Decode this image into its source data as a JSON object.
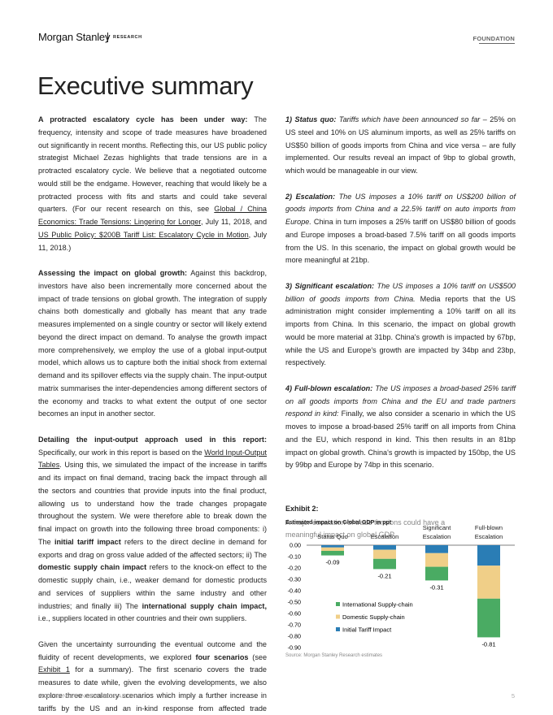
{
  "header": {
    "brand": "Morgan Stanley",
    "section": "RESEARCH",
    "tag": "FOUNDATION"
  },
  "title": "Executive summary",
  "columns": [
    [
      [
        {
          "text": "A protracted escalatory cycle has been under way:",
          "style": "bold"
        },
        {
          "text": " The frequency, intensity and scope of trade measures have broadened out significantly in recent months. Reflecting this, our US public policy strategist Michael Zezas highlights that trade tensions are in a protracted escalatory cycle. We believe that a negotiated outcome would still be the endgame. However, reaching that would likely be a protracted process with fits and starts and could take several quarters. (For our recent research on this, see "
        },
        {
          "text": "Global / China Economics: Trade Tensions: Lingering for Longer",
          "style": "link"
        },
        {
          "text": ", July 11, 2018, and "
        },
        {
          "text": "US Public Policy: $200B Tariff List: Escalatory Cycle in Motion",
          "style": "link"
        },
        {
          "text": ", July 11, 2018.)"
        }
      ],
      [
        {
          "text": "Assessing the impact on global growth:",
          "style": "bold"
        },
        {
          "text": " Against this backdrop, investors have also been incrementally more concerned about the impact of trade tensions on global growth. The integration of supply chains both domestically and globally has meant that any trade measures implemented on a single country or sector will likely extend beyond the direct impact on demand. To analyse the growth impact more comprehensively, we employ the use of a global input-output model, which allows us to capture both the initial shock from external demand and its spillover effects via the supply chain. The input-output matrix summarises the inter-dependencies among different sectors of the economy and tracks to what extent the output of one sector becomes an input in another sector."
        }
      ],
      [
        {
          "text": "Detailing the input-output approach used in this report:",
          "style": "bold"
        },
        {
          "text": " Specifically, our work in this report is based on the "
        },
        {
          "text": "World Input-Output Tables",
          "style": "link"
        },
        {
          "text": ". Using this, we simulated the impact of the increase in tariffs and its impact on final demand, tracing back the impact through all the sectors and countries that provide inputs into the final product, allowing us to understand how the trade changes propagate throughout the system. We were therefore able to break down the final impact on growth into the following three broad components: i) The "
        },
        {
          "text": "initial tariff impact",
          "style": "bold"
        },
        {
          "text": " refers to the direct decline in demand for exports and drag on gross value added of the affected sectors; ii) The "
        },
        {
          "text": "domestic supply chain impact",
          "style": "bold"
        },
        {
          "text": " refers to the knock-on effect to the domestic supply chain, i.e., weaker demand for domestic products and services of suppliers within the same industry and other industries; and finally iii) The "
        },
        {
          "text": "international supply chain impact,",
          "style": "bold"
        },
        {
          "text": " i.e., suppliers located in other countries and their own suppliers."
        }
      ],
      [
        {
          "text": "Given the uncertainty surrounding the eventual outcome and the fluidity of recent developments, we explored "
        },
        {
          "text": "four scenarios",
          "style": "bold"
        },
        {
          "text": " (see "
        },
        {
          "text": "Exhibit 1",
          "style": "link"
        },
        {
          "text": " for a summary). The first scenario covers the trade measures to date while, given the evolving developments, we also explore three escalatory scenarios which imply a further increase in tariffs by the US and an in-kind response from affected trade partners."
        }
      ]
    ],
    [
      [
        {
          "text": "1) Status quo:",
          "style": "bold-italic"
        },
        {
          "text": " Tariffs which have been announced so far",
          "style": "italic"
        },
        {
          "text": " – 25% on US steel and 10% on US aluminum imports, as well as 25% tariffs on US$50 billion of goods imports from China and vice versa – are fully implemented. Our results reveal an impact of 9bp to global growth, which would be manageable in our view."
        }
      ],
      [
        {
          "text": "2) Escalation:",
          "style": "bold-italic"
        },
        {
          "text": " The US imposes a 10% tariff on US$200 billion of goods imports from China and a 22.5% tariff on auto imports from Europe.",
          "style": "italic"
        },
        {
          "text": " China in turn imposes a 25% tariff on US$80 billion of goods and Europe imposes a broad-based 7.5% tariff on all goods imports from the US. In this scenario, the impact on global growth would be more meaningful at 21bp."
        }
      ],
      [
        {
          "text": "3) Significant escalation:",
          "style": "bold-italic"
        },
        {
          "text": " The US imposes a 10% tariff on US$500 billion of goods imports from China.",
          "style": "italic"
        },
        {
          "text": " Media reports that the US administration might consider implementing a 10% tariff on all its imports from China. In this scenario, the impact on global growth would be more material at 31bp. China's growth is impacted by 67bp, while the US and Europe's growth are impacted by 34bp and 23bp, respectively."
        }
      ],
      [
        {
          "text": "4) Full-blown escalation:",
          "style": "bold-italic"
        },
        {
          "text": " The US imposes a broad-based 25% tariff on all goods imports from China and the EU and trade partners respond in kind:",
          "style": "italic"
        },
        {
          "text": " Finally, we also consider a scenario in which the US moves to impose a broad-based 25% tariff on all imports from China and the EU, which respond in kind. This then results in an 81bp impact on global growth. China's growth is impacted by 150bp, the US by 99bp and Europe by 74bp in this scenario."
        }
      ]
    ]
  ],
  "chart_data": {
    "type": "stacked-bar",
    "label": "Exhibit 2:",
    "subtitle": "A major escalation of trade tensions could have a meaningful impact on global GDP",
    "title": "Estimated impact on Global GDP in ppt",
    "categories": [
      "Status Quo",
      "Escalation",
      "Significant Escalation",
      "Full-blown Escalation"
    ],
    "series": [
      {
        "name": "International Supply-chain",
        "color": "#4aab63",
        "values": [
          -0.04,
          -0.09,
          -0.12,
          -0.34
        ]
      },
      {
        "name": "Domestic Supply-chain",
        "color": "#f0cf88",
        "values": [
          -0.03,
          -0.08,
          -0.12,
          -0.29
        ]
      },
      {
        "name": "Initial Tariff Impact",
        "color": "#2a7db5",
        "values": [
          -0.02,
          -0.04,
          -0.07,
          -0.18
        ]
      }
    ],
    "totals": [
      -0.09,
      -0.21,
      -0.31,
      -0.81
    ],
    "ylim": [
      0,
      -0.9
    ],
    "yticks": [
      {
        "value": 0,
        "label": "0.00"
      },
      {
        "value": -0.1,
        "label": "-0.10"
      },
      {
        "value": -0.2,
        "label": "-0.20"
      },
      {
        "value": -0.3,
        "label": "-0.30"
      },
      {
        "value": -0.4,
        "label": "-0.40"
      },
      {
        "value": -0.5,
        "label": "-0.50"
      },
      {
        "value": -0.6,
        "label": "-0.60"
      },
      {
        "value": -0.7,
        "label": "-0.70"
      },
      {
        "value": -0.8,
        "label": "-0.80"
      },
      {
        "value": -0.9,
        "label": "-0.90"
      }
    ],
    "source": "Source: Morgan Stanley Research estimates"
  },
  "footer": {
    "left": "MORGAN STANLEY RESEARCH",
    "page": 5
  }
}
